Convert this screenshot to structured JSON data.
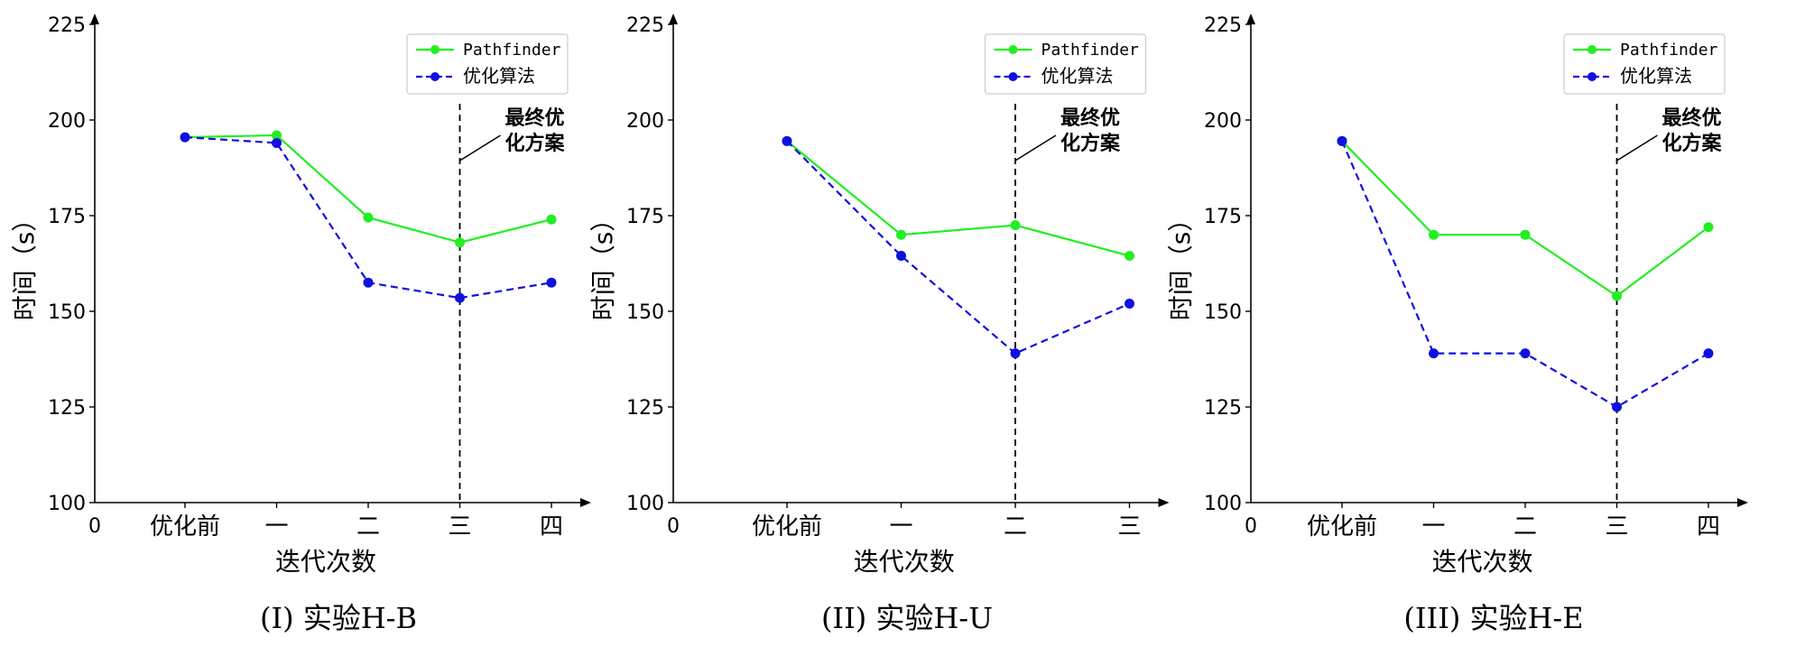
{
  "chart_data": [
    {
      "type": "line",
      "caption": "(I) 实验H-B",
      "xlabel": "迭代次数",
      "ylabel": "时间（s）",
      "ylim": [
        100,
        225
      ],
      "yticks": [
        100,
        125,
        150,
        175,
        200,
        225
      ],
      "x_origin_label": "0",
      "categories": [
        "优化前",
        "一",
        "二",
        "三",
        "四"
      ],
      "series": [
        {
          "name": "Pathfinder",
          "color": "#22ee22",
          "style": "solid",
          "values": [
            195.5,
            196,
            174.5,
            168,
            174
          ]
        },
        {
          "name": "优化算法",
          "color": "#1010e0",
          "style": "dashed",
          "values": [
            195.5,
            194,
            157.5,
            153.5,
            157.5
          ]
        }
      ],
      "vline_index": 3,
      "annotation": [
        "最终优",
        "化方案"
      ],
      "legend": "top-right"
    },
    {
      "type": "line",
      "caption": "(II) 实验H-U",
      "xlabel": "迭代次数",
      "ylabel": "时间（s）",
      "ylim": [
        100,
        225
      ],
      "yticks": [
        100,
        125,
        150,
        175,
        200,
        225
      ],
      "x_origin_label": "0",
      "categories": [
        "优化前",
        "一",
        "二",
        "三"
      ],
      "series": [
        {
          "name": "Pathfinder",
          "color": "#22ee22",
          "style": "solid",
          "values": [
            194.5,
            170,
            172.5,
            164.5
          ]
        },
        {
          "name": "优化算法",
          "color": "#1010e0",
          "style": "dashed",
          "values": [
            194.5,
            164.5,
            139,
            152
          ]
        }
      ],
      "vline_index": 2,
      "annotation": [
        "最终优",
        "化方案"
      ],
      "legend": "top-right"
    },
    {
      "type": "line",
      "caption": "(III) 实验H-E",
      "xlabel": "迭代次数",
      "ylabel": "时间（s）",
      "ylim": [
        100,
        225
      ],
      "yticks": [
        100,
        125,
        150,
        175,
        200,
        225
      ],
      "x_origin_label": "0",
      "categories": [
        "优化前",
        "一",
        "二",
        "三",
        "四"
      ],
      "series": [
        {
          "name": "Pathfinder",
          "color": "#22ee22",
          "style": "solid",
          "values": [
            194.5,
            170,
            170,
            154,
            172
          ]
        },
        {
          "name": "优化算法",
          "color": "#1010e0",
          "style": "dashed",
          "values": [
            194.5,
            139,
            139,
            125,
            139
          ]
        }
      ],
      "vline_index": 3,
      "annotation": [
        "最终优",
        "化方案"
      ],
      "legend": "top-right"
    }
  ]
}
